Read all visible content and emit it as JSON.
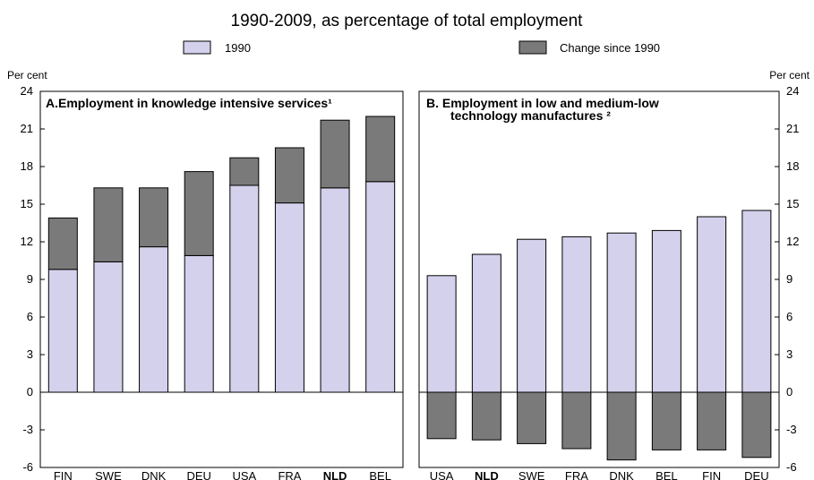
{
  "title": "1990-2009, as percentage of total employment",
  "legend": {
    "items": [
      {
        "label": "1990",
        "color": "#d3d1eb"
      },
      {
        "label": "Change since 1990",
        "color": "#7a7a7a"
      }
    ]
  },
  "y_unit_left": "Per cent",
  "y_unit_right": "Per cent",
  "chart_data": [
    {
      "type": "bar",
      "stacked": true,
      "title": "A.Employment in knowledge intensive services¹",
      "categories": [
        "FIN",
        "SWE",
        "DNK",
        "DEU",
        "USA",
        "FRA",
        "NLD",
        "BEL"
      ],
      "bold_category": "NLD",
      "series": [
        {
          "name": "1990",
          "color": "#d3d1eb",
          "values": [
            9.8,
            10.4,
            11.6,
            10.9,
            16.5,
            15.1,
            16.3,
            16.8
          ]
        },
        {
          "name": "Change since 1990",
          "color": "#7a7a7a",
          "values": [
            4.1,
            5.9,
            4.7,
            6.7,
            2.2,
            4.4,
            5.4,
            5.2
          ]
        }
      ],
      "ylim": [
        -6,
        24
      ],
      "yticks": [
        -6,
        -3,
        0,
        3,
        6,
        9,
        12,
        15,
        18,
        21,
        24
      ],
      "ytick_labels": [
        "-6",
        "-3",
        "0",
        "3",
        "6",
        "9",
        "12",
        "15",
        "18",
        "21",
        "24"
      ],
      "grid": false
    },
    {
      "type": "bar",
      "stacked": true,
      "title_lines": [
        "B. Employment in low and medium-low",
        "technology manufactures ²"
      ],
      "categories": [
        "USA",
        "NLD",
        "SWE",
        "FRA",
        "DNK",
        "BEL",
        "FIN",
        "DEU"
      ],
      "bold_category": "NLD",
      "series": [
        {
          "name": "1990",
          "color": "#d3d1eb",
          "values": [
            9.3,
            11.0,
            12.2,
            12.4,
            12.7,
            12.9,
            14.0,
            14.5
          ]
        },
        {
          "name": "Change since 1990",
          "color": "#7a7a7a",
          "values": [
            -3.7,
            -3.8,
            -4.1,
            -4.5,
            -5.4,
            -4.6,
            -4.6,
            -5.2
          ]
        }
      ],
      "ylim": [
        -6,
        24
      ],
      "yticks": [
        -6,
        -3,
        0,
        3,
        6,
        9,
        12,
        15,
        18,
        21,
        24
      ],
      "ytick_labels": [
        "-6",
        "-3",
        "0",
        "3",
        "6",
        "9",
        "12",
        "15",
        "18",
        "21",
        "24"
      ],
      "grid": false
    }
  ]
}
